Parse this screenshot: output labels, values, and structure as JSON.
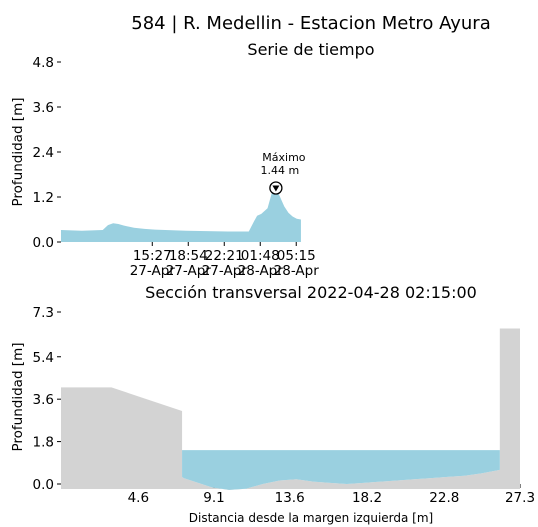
{
  "suptitle": "584 | R. Medellin - Estacion Metro Ayura",
  "chart_data": [
    {
      "type": "area",
      "title": "Serie de tiempo",
      "ylabel": "Profundidad [m]",
      "ylim": [
        0,
        4.8
      ],
      "yticks": [
        "0.0",
        "1.2",
        "2.4",
        "3.6",
        "4.8"
      ],
      "xlim": [
        0,
        44
      ],
      "xticks": [
        {
          "x": 8.75,
          "time": "15:27",
          "date": "27-Apr"
        },
        {
          "x": 12.2,
          "time": "18:54",
          "date": "27-Apr"
        },
        {
          "x": 15.65,
          "time": "22:21",
          "date": "27-Apr"
        },
        {
          "x": 19.1,
          "time": "01:48",
          "date": "28-Apr"
        },
        {
          "x": 22.55,
          "time": "05:15",
          "date": "28-Apr"
        }
      ],
      "fill_color": "#9ad0e0",
      "annotation": {
        "text": "Máximo",
        "value_text": "1.44 m",
        "x": 20.6,
        "y": 1.44
      },
      "series": [
        {
          "x": [
            0,
            2,
            3,
            4,
            4.5,
            5,
            5.5,
            6,
            7,
            8,
            9,
            10,
            12,
            14,
            16,
            18,
            18.5,
            18.8,
            19.2,
            19.8,
            20.2,
            20.6,
            21,
            21.4,
            21.8,
            22.2,
            22.6,
            23
          ],
          "y": [
            0.32,
            0.3,
            0.31,
            0.32,
            0.45,
            0.5,
            0.48,
            0.44,
            0.38,
            0.35,
            0.33,
            0.32,
            0.3,
            0.29,
            0.28,
            0.28,
            0.55,
            0.7,
            0.75,
            0.9,
            1.3,
            1.44,
            1.2,
            0.95,
            0.78,
            0.68,
            0.62,
            0.6
          ]
        }
      ]
    },
    {
      "type": "area",
      "title": "Sección transversal 2022-04-28 02:15:00",
      "ylabel": "Profundidad [m]",
      "xlabel": "Distancia desde la margen izquierda [m]",
      "ylim": [
        0,
        7.3
      ],
      "yticks": [
        "0.0",
        "1.8",
        "3.6",
        "5.4",
        "7.3"
      ],
      "xlim": [
        0,
        27.3
      ],
      "xticks": [
        "4.6",
        "9.1",
        "13.6",
        "18.2",
        "22.8",
        "27.3"
      ],
      "terrain_color": "#d3d3d3",
      "water_color": "#9ad0e0",
      "water_level": 1.44,
      "bed": {
        "x": [
          0,
          3,
          7.2,
          7.2,
          7.3,
          9,
          10,
          11,
          12,
          13,
          14,
          15,
          16,
          17,
          18,
          19,
          20,
          21,
          22,
          23,
          24,
          25,
          26.1,
          26.1,
          27.3
        ],
        "y": [
          4.1,
          4.1,
          3.1,
          0.3,
          0.25,
          -0.15,
          -0.25,
          -0.2,
          0.0,
          0.15,
          0.2,
          0.1,
          0.05,
          0.0,
          0.05,
          0.1,
          0.15,
          0.2,
          0.25,
          0.3,
          0.35,
          0.45,
          0.6,
          6.6,
          6.6
        ]
      }
    }
  ]
}
